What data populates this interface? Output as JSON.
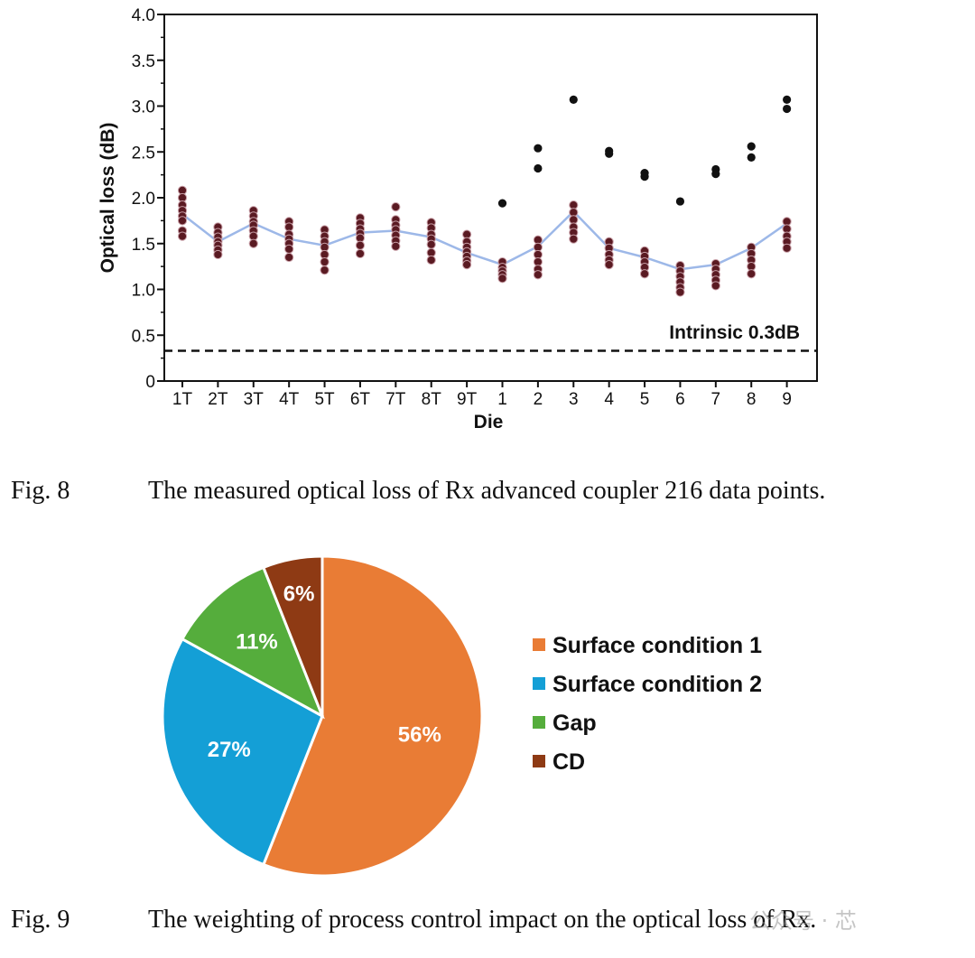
{
  "chart_data": [
    {
      "type": "scatter",
      "title": "",
      "xlabel": "Die",
      "ylabel": "Optical loss (dB)",
      "ylim": [
        0,
        4.0
      ],
      "y_ticks": [
        "0",
        "0.5",
        "1.0",
        "1.5",
        "2.0",
        "2.5",
        "3.0",
        "3.5",
        "4.0"
      ],
      "y_tick_values": [
        0,
        0.5,
        1.0,
        1.5,
        2.0,
        2.5,
        3.0,
        3.5,
        4.0
      ],
      "categories": [
        "1T",
        "2T",
        "3T",
        "4T",
        "5T",
        "6T",
        "7T",
        "8T",
        "9T",
        "1",
        "2",
        "3",
        "4",
        "5",
        "6",
        "7",
        "8",
        "9"
      ],
      "trend_series": {
        "name": "mean",
        "color": "#9db8e8",
        "values": [
          1.82,
          1.52,
          1.72,
          1.55,
          1.48,
          1.62,
          1.64,
          1.57,
          1.4,
          1.27,
          1.47,
          1.85,
          1.45,
          1.35,
          1.22,
          1.27,
          1.45,
          1.72
        ]
      },
      "points": [
        [
          2.08,
          2.0,
          1.92,
          1.86,
          1.8,
          1.75,
          1.64,
          1.58
        ],
        [
          1.68,
          1.62,
          1.57,
          1.52,
          1.48,
          1.43,
          1.38
        ],
        [
          1.86,
          1.8,
          1.74,
          1.7,
          1.64,
          1.58,
          1.5
        ],
        [
          1.74,
          1.68,
          1.6,
          1.55,
          1.5,
          1.44,
          1.35
        ],
        [
          1.65,
          1.58,
          1.52,
          1.46,
          1.38,
          1.3,
          1.21
        ],
        [
          1.78,
          1.72,
          1.66,
          1.61,
          1.56,
          1.48,
          1.39
        ],
        [
          1.9,
          1.76,
          1.7,
          1.65,
          1.59,
          1.53,
          1.47
        ],
        [
          1.73,
          1.67,
          1.6,
          1.55,
          1.49,
          1.4,
          1.32
        ],
        [
          1.6,
          1.52,
          1.46,
          1.41,
          1.36,
          1.31,
          1.27
        ],
        [
          1.94,
          1.3,
          1.24,
          1.2,
          1.16,
          1.12
        ],
        [
          2.54,
          2.32,
          1.54,
          1.46,
          1.38,
          1.3,
          1.22,
          1.16
        ],
        [
          3.07,
          1.92,
          1.84,
          1.76,
          1.68,
          1.62,
          1.55
        ],
        [
          2.51,
          2.48,
          1.52,
          1.45,
          1.38,
          1.32,
          1.27
        ],
        [
          2.27,
          2.23,
          1.42,
          1.36,
          1.3,
          1.24,
          1.17
        ],
        [
          1.96,
          1.26,
          1.2,
          1.14,
          1.08,
          1.02,
          0.97
        ],
        [
          2.31,
          2.26,
          1.28,
          1.22,
          1.16,
          1.1,
          1.04
        ],
        [
          2.56,
          2.44,
          1.46,
          1.39,
          1.32,
          1.25,
          1.17
        ],
        [
          3.07,
          2.97,
          1.74,
          1.66,
          1.58,
          1.52,
          1.45
        ]
      ],
      "reference_line": {
        "value": 0.33,
        "label": "Intrinsic 0.3dB",
        "style": "dashed"
      }
    },
    {
      "type": "pie",
      "title": "",
      "slices": [
        {
          "label": "Surface condition 1",
          "value": 56,
          "display": "56%",
          "color": "#e97c35"
        },
        {
          "label": "Surface condition 2",
          "value": 27,
          "display": "27%",
          "color": "#149fd6"
        },
        {
          "label": "Gap",
          "value": 11,
          "display": "11%",
          "color": "#55ad3c"
        },
        {
          "label": "CD",
          "value": 6,
          "display": "6%",
          "color": "#8e3a14"
        }
      ],
      "legend_position": "right"
    }
  ],
  "captions": {
    "fig8_label": "Fig. 8",
    "fig8_text": "The measured optical loss of Rx advanced coupler 216 data points.",
    "fig9_label": "Fig. 9",
    "fig9_text": "The weighting of process control impact on the optical loss of Rx."
  },
  "watermark": "公众号 · 芯"
}
